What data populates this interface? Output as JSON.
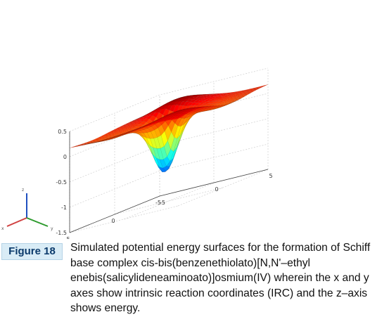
{
  "figure": {
    "badge": "Figure 18",
    "caption": "Simulated potential energy surfaces for the formation of Schiff base complex cis-bis(benzenethiolato)[N,N'–ethyl enebis(salicylideneaminoato)]osmium(IV) wherein the x and y axes show intrinsic reaction coordinates (IRC) and the z–axis shows energy."
  },
  "chart_data": {
    "type": "surface3d",
    "title": "",
    "xlabel": "",
    "ylabel": "",
    "zlabel": "",
    "xlim": [
      -5,
      5
    ],
    "ylim": [
      -5,
      5
    ],
    "zlim": [
      -1.5,
      0.5
    ],
    "x_ticks": [
      "5",
      "0",
      "-5"
    ],
    "y_ticks": [
      "-5",
      "0",
      "5"
    ],
    "z_ticks": [
      "0.5",
      "0",
      "-0.5",
      "-1",
      "-1.5"
    ],
    "z_min_approx": -1.25,
    "z_max_approx": 0.45,
    "colormap": "jet",
    "grid": true,
    "orientation_triad": [
      "x",
      "y",
      "z"
    ],
    "colors": {
      "triad_x": "#d04040",
      "triad_y": "#2d9a2d",
      "triad_z": "#2050c0",
      "badge_bg": "#d9ecf6",
      "badge_text": "#0b3a6b"
    }
  }
}
